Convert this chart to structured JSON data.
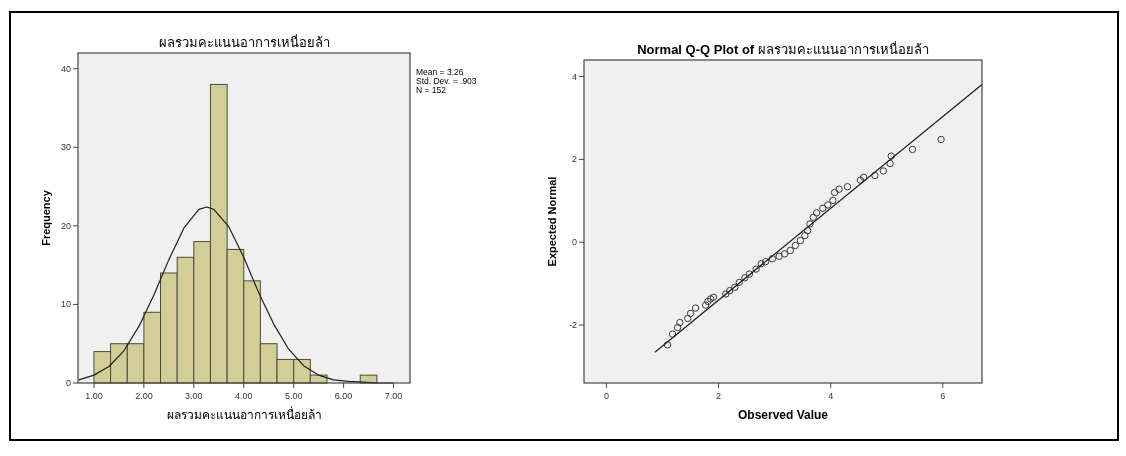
{
  "chart_data": [
    {
      "type": "histogram",
      "title": "ผลรวมคะแนนอาการเหนื่อยล้า",
      "xlabel": "ผลรวมคะแนนอาการเหนื่อยล้า",
      "ylabel": "Frequency",
      "annotations": [
        "Mean = 3.26",
        "Std. Dev. = .903",
        "N = 152"
      ],
      "series": [
        {
          "color": "#d3ce97",
          "bins": [
            1.0,
            1.333,
            1.667,
            2.0,
            2.333,
            2.667,
            3.0,
            3.333,
            3.667,
            4.0,
            4.333,
            4.667,
            5.0,
            5.333,
            5.667,
            6.0,
            6.333,
            6.667
          ],
          "values": [
            4,
            5,
            5,
            9,
            14,
            16,
            18,
            38,
            17,
            13,
            5,
            3,
            3,
            1,
            0,
            0,
            1
          ]
        },
        {
          "type": "line",
          "color": "#1e1e1e",
          "x": [
            0.7,
            1.0,
            1.3,
            1.6,
            1.9,
            2.2,
            2.5,
            2.8,
            3.1,
            3.26,
            3.4,
            3.7,
            4.0,
            4.3,
            4.6,
            4.9,
            5.2,
            5.5,
            5.8,
            6.1,
            6.4,
            6.7,
            7.0
          ],
          "values": [
            0.4,
            1.0,
            2.1,
            4.1,
            7.2,
            11.2,
            15.7,
            19.7,
            22.1,
            22.4,
            22.1,
            19.9,
            16.0,
            11.5,
            7.5,
            4.3,
            2.2,
            1.0,
            0.4,
            0.2,
            0.1,
            0.0,
            0.0
          ]
        }
      ],
      "xlim": [
        0.68,
        7.33
      ],
      "ylim": [
        0,
        42
      ],
      "xticks": [
        {
          "value": 1,
          "label": "1.00"
        },
        {
          "value": 2,
          "label": "2.00"
        },
        {
          "value": 3,
          "label": "3.00"
        },
        {
          "value": 4,
          "label": "4.00"
        },
        {
          "value": 5,
          "label": "5.00"
        },
        {
          "value": 6,
          "label": "6.00"
        },
        {
          "value": 7,
          "label": "7.00"
        }
      ],
      "yticks": [
        0,
        10,
        20,
        30,
        40
      ]
    },
    {
      "type": "scatter",
      "title": "**Normal Q-Q Plot of** ผลรวมคะแนนอาการเหนื่อยล้า",
      "xlabel": "Observed Value",
      "ylabel": "Expected Normal",
      "series": [
        {
          "marker": "circle",
          "color": "#3a3a3a",
          "x": [
            1.09,
            1.18,
            1.27,
            1.31,
            1.45,
            1.5,
            1.59,
            1.77,
            1.81,
            1.86,
            1.91,
            2.13,
            2.2,
            2.29,
            2.37,
            2.47,
            2.55,
            2.67,
            2.76,
            2.84,
            2.96,
            3.08,
            3.18,
            3.28,
            3.37,
            3.46,
            3.54,
            3.59,
            3.63,
            3.69,
            3.75,
            3.86,
            3.95,
            4.04,
            4.07,
            4.15,
            4.3,
            4.53,
            4.59,
            4.79,
            4.94,
            5.06,
            5.08,
            5.46,
            5.97
          ],
          "values": [
            -2.48,
            -2.22,
            -2.06,
            -1.94,
            -1.84,
            -1.72,
            -1.59,
            -1.52,
            -1.43,
            -1.37,
            -1.33,
            -1.25,
            -1.17,
            -1.09,
            -0.97,
            -0.86,
            -0.77,
            -0.65,
            -0.52,
            -0.47,
            -0.4,
            -0.34,
            -0.28,
            -0.2,
            -0.08,
            0.04,
            0.16,
            0.28,
            0.44,
            0.6,
            0.71,
            0.82,
            0.9,
            1.01,
            1.2,
            1.28,
            1.34,
            1.5,
            1.57,
            1.61,
            1.72,
            1.9,
            2.08,
            2.24,
            2.48
          ]
        },
        {
          "type": "line",
          "color": "#1e1e1e",
          "x": [
            0.87,
            6.7
          ],
          "values": [
            -2.65,
            3.81
          ]
        }
      ],
      "xlim": [
        -0.4,
        6.7
      ],
      "ylim": [
        -3.4,
        4.4
      ],
      "xticks": [
        0,
        2,
        4,
        6
      ],
      "yticks": [
        -2,
        0,
        2,
        4
      ]
    }
  ]
}
